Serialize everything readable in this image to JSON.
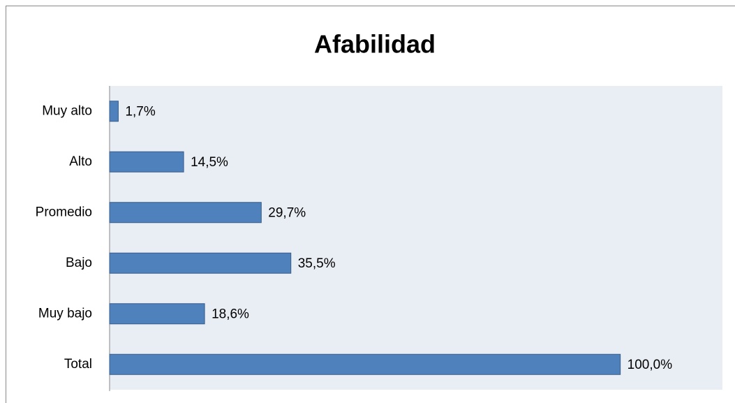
{
  "chart_data": {
    "type": "bar",
    "orientation": "horizontal",
    "title": "Afabilidad",
    "categories": [
      "Muy alto",
      "Alto",
      "Promedio",
      "Bajo",
      "Muy bajo",
      "Total"
    ],
    "values": [
      1.7,
      14.5,
      29.7,
      35.5,
      18.6,
      100.0
    ],
    "value_labels": [
      "1,7%",
      "14,5%",
      "29,7%",
      "35,5%",
      "18,6%",
      "100,0%"
    ],
    "color": "#4f81bd",
    "xlim": [
      0,
      120
    ]
  }
}
